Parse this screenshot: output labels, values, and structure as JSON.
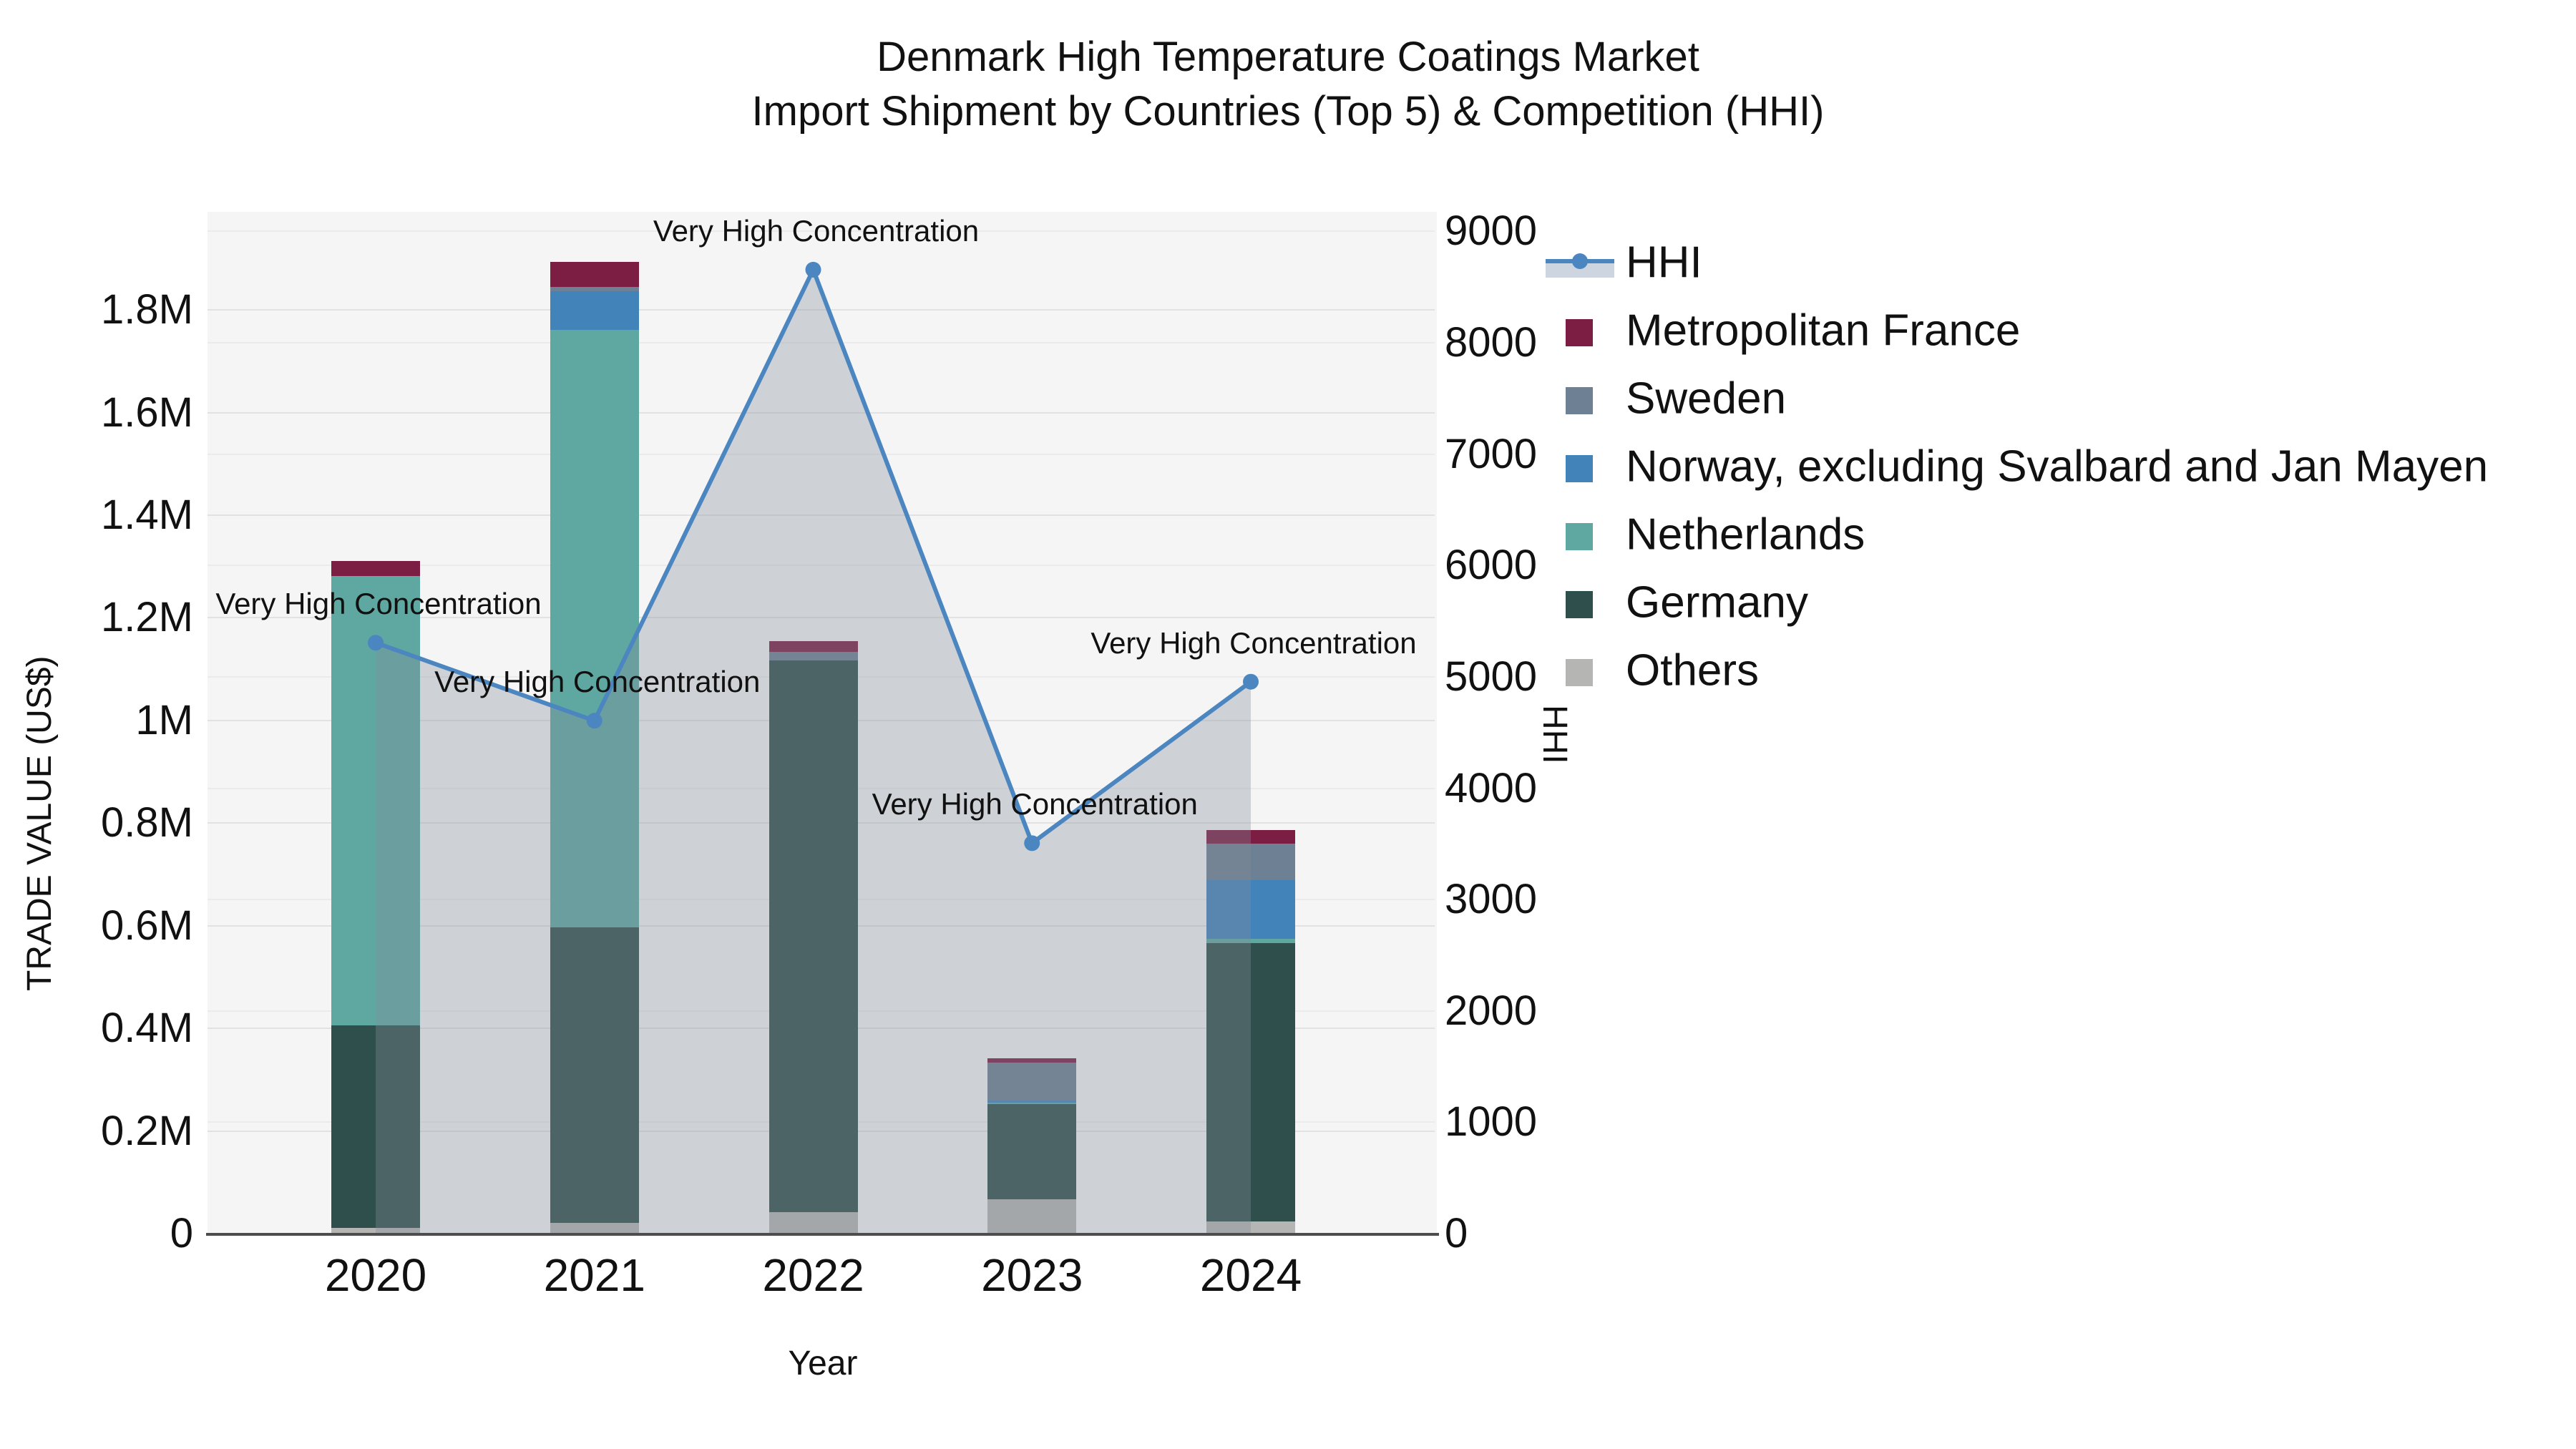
{
  "title": {
    "line1": "Denmark High Temperature Coatings Market",
    "line2": "Import Shipment by Countries (Top 5) & Competition (HHI)"
  },
  "axes": {
    "x": {
      "label": "Year",
      "ticks": [
        "2020",
        "2021",
        "2022",
        "2023",
        "2024"
      ]
    },
    "y_left": {
      "label": "TRADE VALUE (US$)",
      "ticks": [
        "0",
        "0.2M",
        "0.4M",
        "0.6M",
        "0.8M",
        "1M",
        "1.2M",
        "1.4M",
        "1.6M",
        "1.8M"
      ]
    },
    "y_right": {
      "label": "HHI",
      "ticks": [
        "0",
        "1000",
        "2000",
        "3000",
        "4000",
        "5000",
        "6000",
        "7000",
        "8000",
        "9000"
      ]
    }
  },
  "legend": {
    "items": [
      {
        "label": "HHI",
        "color": "#4C86C0",
        "type": "line"
      },
      {
        "label": "Metropolitan France",
        "color": "#7C1D43",
        "type": "box"
      },
      {
        "label": "Sweden",
        "color": "#6D8094",
        "type": "box"
      },
      {
        "label": "Norway, excluding Svalbard and Jan Mayen",
        "color": "#4283BA",
        "type": "box"
      },
      {
        "label": "Netherlands",
        "color": "#5FA8A2",
        "type": "box"
      },
      {
        "label": "Germany",
        "color": "#2F4F4D",
        "type": "box"
      },
      {
        "label": "Others",
        "color": "#B5B5B3",
        "type": "box"
      }
    ]
  },
  "chart_data": {
    "type": "bar+line",
    "title": "Denmark High Temperature Coatings Market — Import Shipment by Countries (Top 5) & Competition (HHI)",
    "xlabel": "Year",
    "ylabel_left": "TRADE VALUE (US$)",
    "ylabel_right": "HHI",
    "categories": [
      "2020",
      "2021",
      "2022",
      "2023",
      "2024"
    ],
    "bar_unit": "M US$",
    "ylim_left": [
      0,
      1.99
    ],
    "ylim_right": [
      0,
      9170
    ],
    "grid": true,
    "legend_position": "right",
    "stack_series": [
      {
        "name": "Others",
        "color": "#B5B5B3",
        "values": [
          0.01,
          0.02,
          0.04,
          0.065,
          0.022
        ]
      },
      {
        "name": "Germany",
        "color": "#2F4F4D",
        "values": [
          0.395,
          0.575,
          1.075,
          0.186,
          0.543
        ]
      },
      {
        "name": "Netherlands",
        "color": "#5FA8A2",
        "values": [
          0.875,
          1.165,
          0.0,
          0.003,
          0.008
        ]
      },
      {
        "name": "Norway, excluding Svalbard and Jan Mayen",
        "color": "#4283BA",
        "values": [
          0.0,
          0.075,
          0.0,
          0.004,
          0.115
        ]
      },
      {
        "name": "Sweden",
        "color": "#6D8094",
        "values": [
          0.0,
          0.008,
          0.017,
          0.074,
          0.071
        ]
      },
      {
        "name": "Metropolitan France",
        "color": "#7C1D43",
        "values": [
          0.03,
          0.05,
          0.021,
          0.008,
          0.026
        ]
      }
    ],
    "bar_totals": [
      1.31,
      1.893,
      1.153,
      0.34,
      0.785
    ],
    "line_series": {
      "name": "HHI",
      "color": "#4C86C0",
      "area_fill": "rgba(132,141,153,0.34)",
      "values": [
        5300,
        4600,
        8650,
        3500,
        4950
      ]
    },
    "annotations": [
      "Very High Concentration",
      "Very High Concentration",
      "Very High Concentration",
      "Very High Concentration",
      "Very High Concentration"
    ]
  }
}
